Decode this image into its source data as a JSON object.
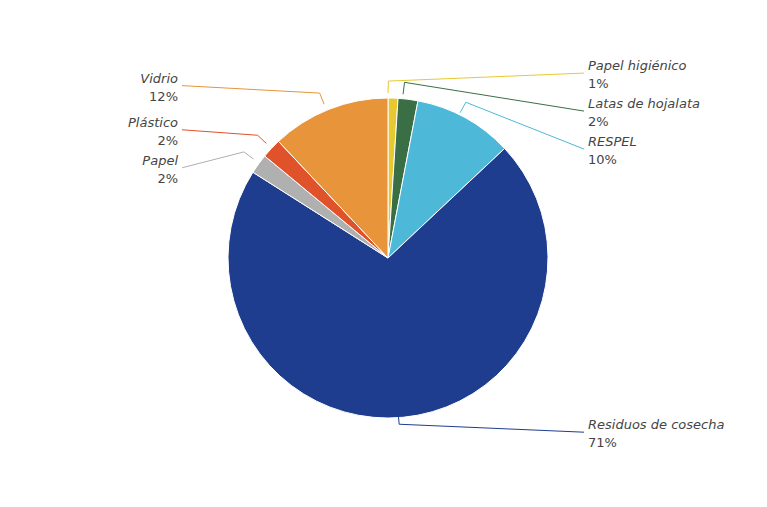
{
  "chart_data": {
    "type": "pie",
    "categories": [
      "Papel higiénico",
      "Latas de hojalata",
      "RESPEL",
      "Residuos de cosecha",
      "Papel",
      "Plástico",
      "Vidrio"
    ],
    "values": [
      1,
      2,
      10,
      71,
      2,
      2,
      12
    ],
    "value_labels": [
      "1%",
      "2%",
      "10%",
      "71%",
      "2%",
      "2%",
      "12%"
    ],
    "colors": [
      "#e8c830",
      "#3a6e45",
      "#4db8d8",
      "#1e3d8f",
      "#b0b0b0",
      "#e0522a",
      "#e8943a"
    ],
    "data_labels": true
  }
}
